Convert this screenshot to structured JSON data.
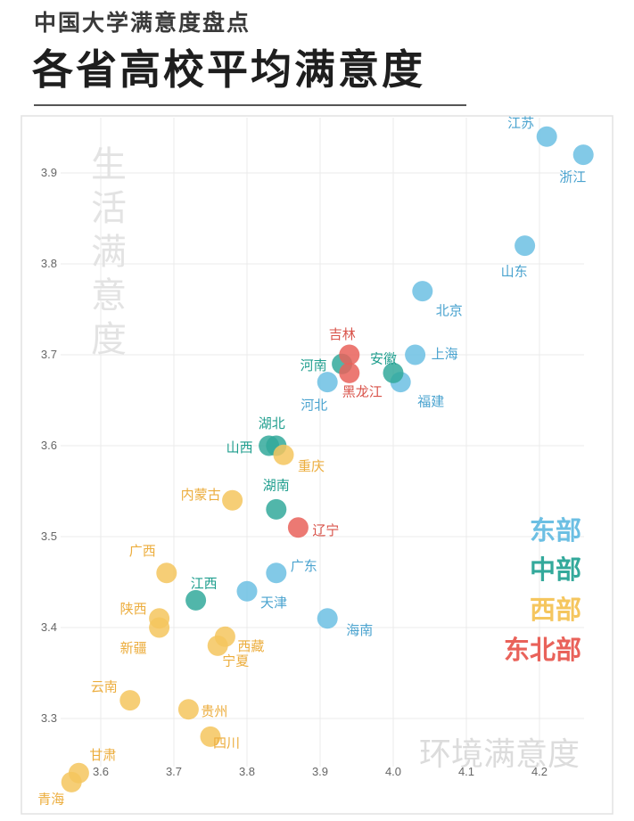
{
  "header": {
    "subtitle": "中国大学满意度盘点",
    "title": "各省高校平均满意度"
  },
  "colors": {
    "东部": "#6cbfe3",
    "中部": "#33a99b",
    "西部": "#f5c65e",
    "东北部": "#e9625a"
  },
  "chart_data": {
    "type": "scatter",
    "xlabel": "环境满意度",
    "ylabel": "生活满意度",
    "xlim": [
      3.55,
      4.27
    ],
    "ylim": [
      3.22,
      3.97
    ],
    "x_ticks": [
      "3.6",
      "3.7",
      "3.8",
      "3.9",
      "4.0",
      "4.1",
      "4.2"
    ],
    "y_ticks": [
      "3.3",
      "3.4",
      "3.5",
      "3.6",
      "3.7",
      "3.8",
      "3.9"
    ],
    "legend": [
      "东部",
      "中部",
      "西部",
      "东北部"
    ],
    "legend_position": "right",
    "grid": true,
    "points": [
      {
        "name": "江苏",
        "x": 4.21,
        "y": 3.94,
        "region": "东部"
      },
      {
        "name": "浙江",
        "x": 4.26,
        "y": 3.92,
        "region": "东部"
      },
      {
        "name": "山东",
        "x": 4.18,
        "y": 3.82,
        "region": "东部"
      },
      {
        "name": "北京",
        "x": 4.04,
        "y": 3.77,
        "region": "东部"
      },
      {
        "name": "上海",
        "x": 4.03,
        "y": 3.7,
        "region": "东部"
      },
      {
        "name": "福建",
        "x": 4.01,
        "y": 3.67,
        "region": "东部"
      },
      {
        "name": "河北",
        "x": 3.91,
        "y": 3.67,
        "region": "东部"
      },
      {
        "name": "广东",
        "x": 3.84,
        "y": 3.46,
        "region": "东部"
      },
      {
        "name": "天津",
        "x": 3.8,
        "y": 3.44,
        "region": "东部"
      },
      {
        "name": "海南",
        "x": 3.91,
        "y": 3.41,
        "region": "东部"
      },
      {
        "name": "河南",
        "x": 3.93,
        "y": 3.69,
        "region": "中部"
      },
      {
        "name": "安徽",
        "x": 4.0,
        "y": 3.68,
        "region": "中部"
      },
      {
        "name": "湖北",
        "x": 3.84,
        "y": 3.6,
        "region": "中部"
      },
      {
        "name": "山西",
        "x": 3.83,
        "y": 3.6,
        "region": "中部"
      },
      {
        "name": "湖南",
        "x": 3.84,
        "y": 3.53,
        "region": "中部"
      },
      {
        "name": "江西",
        "x": 3.73,
        "y": 3.43,
        "region": "中部"
      },
      {
        "name": "吉林",
        "x": 3.94,
        "y": 3.7,
        "region": "东北部"
      },
      {
        "name": "黑龙江",
        "x": 3.94,
        "y": 3.68,
        "region": "东北部"
      },
      {
        "name": "辽宁",
        "x": 3.87,
        "y": 3.51,
        "region": "东北部"
      },
      {
        "name": "重庆",
        "x": 3.85,
        "y": 3.59,
        "region": "西部"
      },
      {
        "name": "内蒙古",
        "x": 3.78,
        "y": 3.54,
        "region": "西部"
      },
      {
        "name": "广西",
        "x": 3.69,
        "y": 3.46,
        "region": "西部"
      },
      {
        "name": "陕西",
        "x": 3.68,
        "y": 3.41,
        "region": "西部"
      },
      {
        "name": "新疆",
        "x": 3.68,
        "y": 3.4,
        "region": "西部"
      },
      {
        "name": "西藏",
        "x": 3.77,
        "y": 3.39,
        "region": "西部"
      },
      {
        "name": "宁夏",
        "x": 3.76,
        "y": 3.38,
        "region": "西部"
      },
      {
        "name": "云南",
        "x": 3.64,
        "y": 3.32,
        "region": "西部"
      },
      {
        "name": "贵州",
        "x": 3.72,
        "y": 3.31,
        "region": "西部"
      },
      {
        "name": "四川",
        "x": 3.75,
        "y": 3.28,
        "region": "西部"
      },
      {
        "name": "甘肃",
        "x": 3.57,
        "y": 3.24,
        "region": "西部"
      },
      {
        "name": "青海",
        "x": 3.56,
        "y": 3.23,
        "region": "西部"
      }
    ]
  }
}
